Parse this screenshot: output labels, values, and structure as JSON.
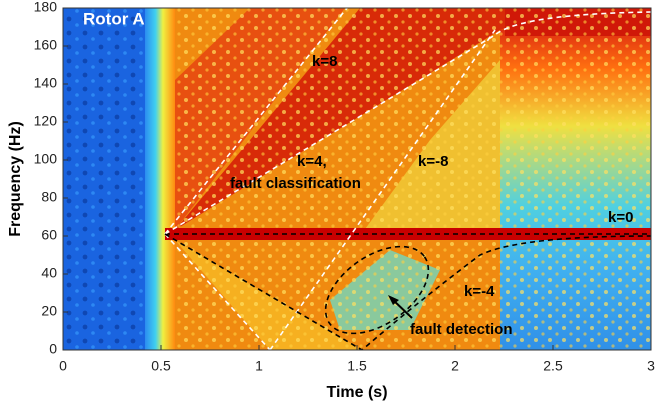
{
  "chart_data": {
    "type": "heatmap",
    "title": "Rotor A",
    "x_label": "Time (s)",
    "y_label": "Frequency (Hz)",
    "xlim": [
      0,
      3
    ],
    "ylim": [
      0,
      180
    ],
    "xticks": [
      0,
      0.5,
      1,
      1.5,
      2,
      2.5,
      3
    ],
    "yticks": [
      0,
      20,
      40,
      60,
      80,
      100,
      120,
      140,
      160,
      180
    ],
    "annotations": [
      "k=8",
      "k=4,",
      "fault classification",
      "k=-8",
      "k=0",
      "k=-4",
      "fault detection"
    ]
  }
}
